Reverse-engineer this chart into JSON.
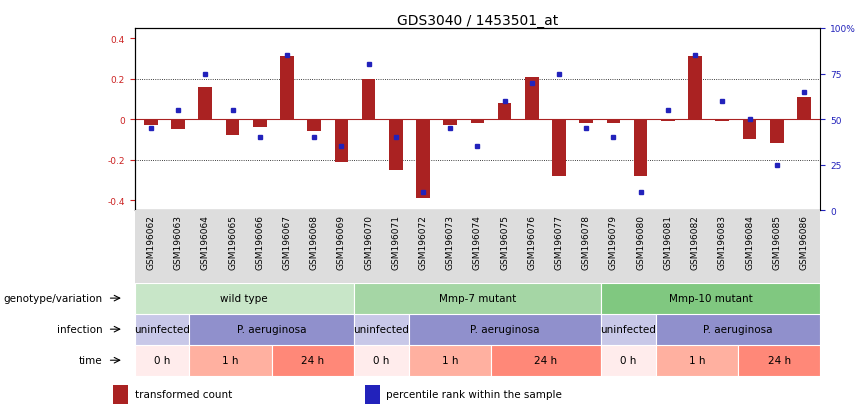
{
  "title": "GDS3040 / 1453501_at",
  "samples": [
    "GSM196062",
    "GSM196063",
    "GSM196064",
    "GSM196065",
    "GSM196066",
    "GSM196067",
    "GSM196068",
    "GSM196069",
    "GSM196070",
    "GSM196071",
    "GSM196072",
    "GSM196073",
    "GSM196074",
    "GSM196075",
    "GSM196076",
    "GSM196077",
    "GSM196078",
    "GSM196079",
    "GSM196080",
    "GSM196081",
    "GSM196082",
    "GSM196083",
    "GSM196084",
    "GSM196085",
    "GSM196086"
  ],
  "red_values": [
    -0.03,
    -0.05,
    0.16,
    -0.08,
    -0.04,
    0.31,
    -0.06,
    -0.21,
    0.2,
    -0.25,
    -0.39,
    -0.03,
    -0.02,
    0.08,
    0.21,
    -0.28,
    -0.02,
    -0.02,
    -0.28,
    -0.01,
    0.31,
    -0.01,
    -0.1,
    -0.12,
    0.11
  ],
  "blue_values": [
    45,
    55,
    75,
    55,
    40,
    85,
    40,
    35,
    80,
    40,
    10,
    45,
    35,
    60,
    70,
    75,
    45,
    40,
    10,
    55,
    85,
    60,
    50,
    25,
    65
  ],
  "ylim_left": [
    -0.45,
    0.45
  ],
  "ylim_right": [
    0,
    100
  ],
  "yticks_left": [
    -0.4,
    -0.2,
    0.0,
    0.2,
    0.4
  ],
  "yticks_right": [
    0,
    25,
    50,
    75,
    100
  ],
  "ytick_labels_right": [
    "0",
    "25",
    "50",
    "75",
    "100%"
  ],
  "dotted_lines": [
    -0.2,
    0.2
  ],
  "bar_color": "#AA2222",
  "dot_color": "#2222BB",
  "bar_width": 0.5,
  "genotype_row": {
    "label": "genotype/variation",
    "groups": [
      {
        "text": "wild type",
        "start": 0,
        "end": 8,
        "color": "#C8E6C8"
      },
      {
        "text": "Mmp-7 mutant",
        "start": 8,
        "end": 17,
        "color": "#A5D6A5"
      },
      {
        "text": "Mmp-10 mutant",
        "start": 17,
        "end": 25,
        "color": "#80C880"
      }
    ]
  },
  "infection_row": {
    "label": "infection",
    "groups": [
      {
        "text": "uninfected",
        "start": 0,
        "end": 2,
        "color": "#C8C8E8"
      },
      {
        "text": "P. aeruginosa",
        "start": 2,
        "end": 8,
        "color": "#9090CC"
      },
      {
        "text": "uninfected",
        "start": 8,
        "end": 10,
        "color": "#C8C8E8"
      },
      {
        "text": "P. aeruginosa",
        "start": 10,
        "end": 17,
        "color": "#9090CC"
      },
      {
        "text": "uninfected",
        "start": 17,
        "end": 19,
        "color": "#C8C8E8"
      },
      {
        "text": "P. aeruginosa",
        "start": 19,
        "end": 25,
        "color": "#9090CC"
      }
    ]
  },
  "time_row": {
    "label": "time",
    "groups": [
      {
        "text": "0 h",
        "start": 0,
        "end": 2,
        "color": "#FFECEC"
      },
      {
        "text": "1 h",
        "start": 2,
        "end": 5,
        "color": "#FFB0A0"
      },
      {
        "text": "24 h",
        "start": 5,
        "end": 8,
        "color": "#FF8878"
      },
      {
        "text": "0 h",
        "start": 8,
        "end": 10,
        "color": "#FFECEC"
      },
      {
        "text": "1 h",
        "start": 10,
        "end": 13,
        "color": "#FFB0A0"
      },
      {
        "text": "24 h",
        "start": 13,
        "end": 17,
        "color": "#FF8878"
      },
      {
        "text": "0 h",
        "start": 17,
        "end": 19,
        "color": "#FFECEC"
      },
      {
        "text": "1 h",
        "start": 19,
        "end": 22,
        "color": "#FFB0A0"
      },
      {
        "text": "24 h",
        "start": 22,
        "end": 25,
        "color": "#FF8878"
      }
    ]
  },
  "legend": [
    {
      "label": "transformed count",
      "color": "#AA2222"
    },
    {
      "label": "percentile rank within the sample",
      "color": "#2222BB"
    }
  ],
  "bg_color": "#FFFFFF",
  "tick_fontsize": 6.5,
  "title_fontsize": 10,
  "row_label_fontsize": 7.5,
  "annotation_fontsize": 7.5
}
